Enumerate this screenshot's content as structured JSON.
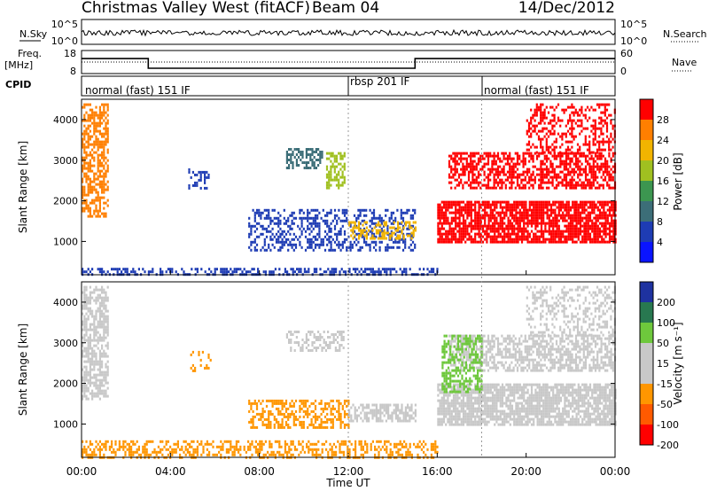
{
  "header": {
    "title": "Christmas Valley West (fitACF)",
    "beam": "Beam 04",
    "date": "14/Dec/2012"
  },
  "nsky_panel": {
    "left_label": "N.Sky",
    "left_ticks": [
      "10^5",
      "10^0"
    ],
    "right_label": "N.Search",
    "right_ticks": [
      "10^5",
      "10^0"
    ]
  },
  "freq_panel": {
    "left_label_1": "Freq.",
    "left_label_2": "[MHz]",
    "left_ticks": [
      "18",
      "8"
    ],
    "right_label": "Nave",
    "right_ticks": [
      "60",
      "0"
    ]
  },
  "cpid_panel": {
    "label": "CPID",
    "segments": [
      {
        "label": "normal (fast) 151 IF",
        "start_hour": 0,
        "end_hour": 12
      },
      {
        "label": "rbsp 201 IF",
        "start_hour": 12,
        "end_hour": 18
      },
      {
        "label": "normal (fast) 151 IF",
        "start_hour": 18,
        "end_hour": 24
      }
    ]
  },
  "power_panel": {
    "ylabel": "Slant Range [km]",
    "colorbar_label": "Power [dB]",
    "colorbar_ticks": [
      "28",
      "24",
      "20",
      "16",
      "12",
      "8",
      "4"
    ]
  },
  "velocity_panel": {
    "ylabel": "Slant Range [km]",
    "colorbar_label": "Velocity [m s⁻¹]",
    "colorbar_ticks": [
      "200",
      "100",
      "50",
      "15",
      "-15",
      "-50",
      "-100",
      "-200"
    ]
  },
  "x_axis": {
    "label": "Time UT",
    "ticks": [
      "00:00",
      "04:00",
      "08:00",
      "12:00",
      "16:00",
      "20:00",
      "00:00"
    ]
  },
  "colors": {
    "power_scale": [
      "#ff0000",
      "#ff7f00",
      "#f2b400",
      "#a0c020",
      "#3c9650",
      "#3c6e78",
      "#1e3cb4",
      "#0a14ff"
    ],
    "velocity_scale": [
      "#1e32a0",
      "#287850",
      "#6ec83c",
      "#c8c8c8",
      "#c8c8c8",
      "#ff9600",
      "#ff5a00",
      "#ff0000"
    ],
    "ground_scatter": "#c8c8c8"
  },
  "chart_data": {
    "type": "heatmap",
    "x_range_hours": [
      0,
      24
    ],
    "y_range_km": [
      180,
      4500
    ],
    "y_ticks_km": [
      1000,
      2000,
      3000,
      4000
    ],
    "power_regions": [
      {
        "t0": 0.0,
        "t1": 1.2,
        "r0": 1600,
        "r1": 4400,
        "color": "#ff7f00",
        "density": 0.6
      },
      {
        "t0": 4.8,
        "t1": 5.8,
        "r0": 2300,
        "r1": 2800,
        "color": "#1e3cb4",
        "density": 0.4
      },
      {
        "t0": 9.2,
        "t1": 10.8,
        "r0": 2800,
        "r1": 3300,
        "color": "#3c6e78",
        "density": 0.5
      },
      {
        "t0": 11.0,
        "t1": 11.8,
        "r0": 2300,
        "r1": 3200,
        "color": "#a0c020",
        "density": 0.6
      },
      {
        "t0": 7.5,
        "t1": 15.0,
        "r0": 800,
        "r1": 1800,
        "color": "#1e3cb4",
        "density": 0.4
      },
      {
        "t0": 12.0,
        "t1": 15.0,
        "r0": 1100,
        "r1": 1500,
        "color": "#f2b400",
        "density": 0.5
      },
      {
        "t0": 0.0,
        "t1": 16.0,
        "r0": 180,
        "r1": 350,
        "color": "#1e3cb4",
        "density": 0.5
      },
      {
        "t0": 16.0,
        "t1": 24.0,
        "r0": 1000,
        "r1": 2000,
        "color": "#ff0000",
        "density": 0.8
      },
      {
        "t0": 16.5,
        "t1": 24.0,
        "r0": 2300,
        "r1": 3200,
        "color": "#ff0000",
        "density": 0.6
      },
      {
        "t0": 20.0,
        "t1": 24.0,
        "r0": 3200,
        "r1": 4400,
        "color": "#ff0000",
        "density": 0.35
      }
    ],
    "velocity_regions": [
      {
        "t0": 0.0,
        "t1": 1.2,
        "r0": 1600,
        "r1": 4400,
        "color": "#c8c8c8",
        "density": 0.6
      },
      {
        "t0": 4.8,
        "t1": 5.8,
        "r0": 2300,
        "r1": 2800,
        "color": "#ff9600",
        "density": 0.3
      },
      {
        "t0": 9.2,
        "t1": 11.8,
        "r0": 2800,
        "r1": 3300,
        "color": "#c8c8c8",
        "density": 0.5
      },
      {
        "t0": 7.5,
        "t1": 12.0,
        "r0": 900,
        "r1": 1600,
        "color": "#ff9600",
        "density": 0.5
      },
      {
        "t0": 12.0,
        "t1": 15.0,
        "r0": 1100,
        "r1": 1500,
        "color": "#c8c8c8",
        "density": 0.6
      },
      {
        "t0": 0.0,
        "t1": 16.0,
        "r0": 180,
        "r1": 600,
        "color": "#ff9600",
        "density": 0.45
      },
      {
        "t0": 16.0,
        "t1": 24.0,
        "r0": 1000,
        "r1": 2000,
        "color": "#c8c8c8",
        "density": 0.8
      },
      {
        "t0": 16.5,
        "t1": 24.0,
        "r0": 2300,
        "r1": 3200,
        "color": "#c8c8c8",
        "density": 0.6
      },
      {
        "t0": 16.2,
        "t1": 18.0,
        "r0": 1800,
        "r1": 3200,
        "color": "#6ec83c",
        "density": 0.5
      },
      {
        "t0": 20.0,
        "t1": 24.0,
        "r0": 3200,
        "r1": 4400,
        "color": "#c8c8c8",
        "density": 0.35
      }
    ],
    "freq_series": [
      {
        "t0": 0.0,
        "t1": 3.0,
        "value_mhz": 14.5
      },
      {
        "t0": 3.0,
        "t1": 15.0,
        "value_mhz": 10.3
      },
      {
        "t0": 15.0,
        "t1": 24.0,
        "value_mhz": 14.5
      }
    ]
  }
}
